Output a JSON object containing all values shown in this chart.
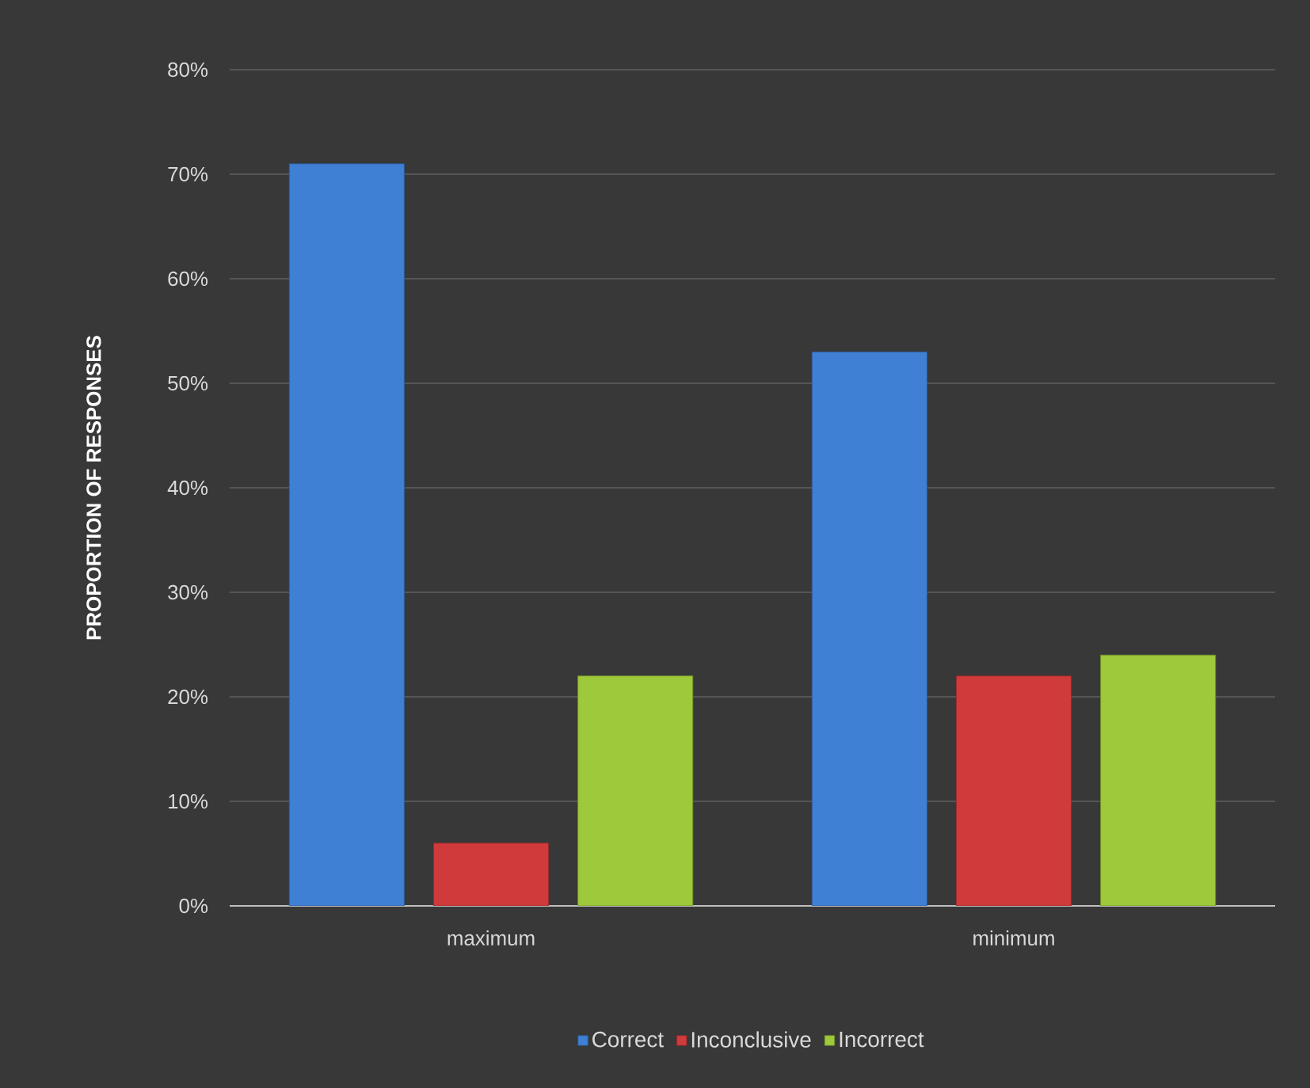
{
  "chart_data": {
    "type": "bar",
    "ylabel": "PROPORTION OF RESPONSES",
    "categories": [
      "maximum",
      "minimum"
    ],
    "series": [
      {
        "name": "Correct",
        "color": "#3f7fd4",
        "values": [
          71,
          53
        ]
      },
      {
        "name": "Inconclusive",
        "color": "#d03a3a",
        "values": [
          6,
          22
        ]
      },
      {
        "name": "Incorrect",
        "color": "#9dc93a",
        "values": [
          22,
          24
        ]
      }
    ],
    "ylim": [
      0,
      80
    ],
    "yticks": [
      {
        "value": 0,
        "label": "0%"
      },
      {
        "value": 10,
        "label": "10%"
      },
      {
        "value": 20,
        "label": "20%"
      },
      {
        "value": 30,
        "label": "30%"
      },
      {
        "value": 40,
        "label": "40%"
      },
      {
        "value": 50,
        "label": "50%"
      },
      {
        "value": 60,
        "label": "60%"
      },
      {
        "value": 70,
        "label": "70%"
      },
      {
        "value": 80,
        "label": "80%"
      }
    ],
    "grid": "y",
    "legend": "bottom"
  }
}
